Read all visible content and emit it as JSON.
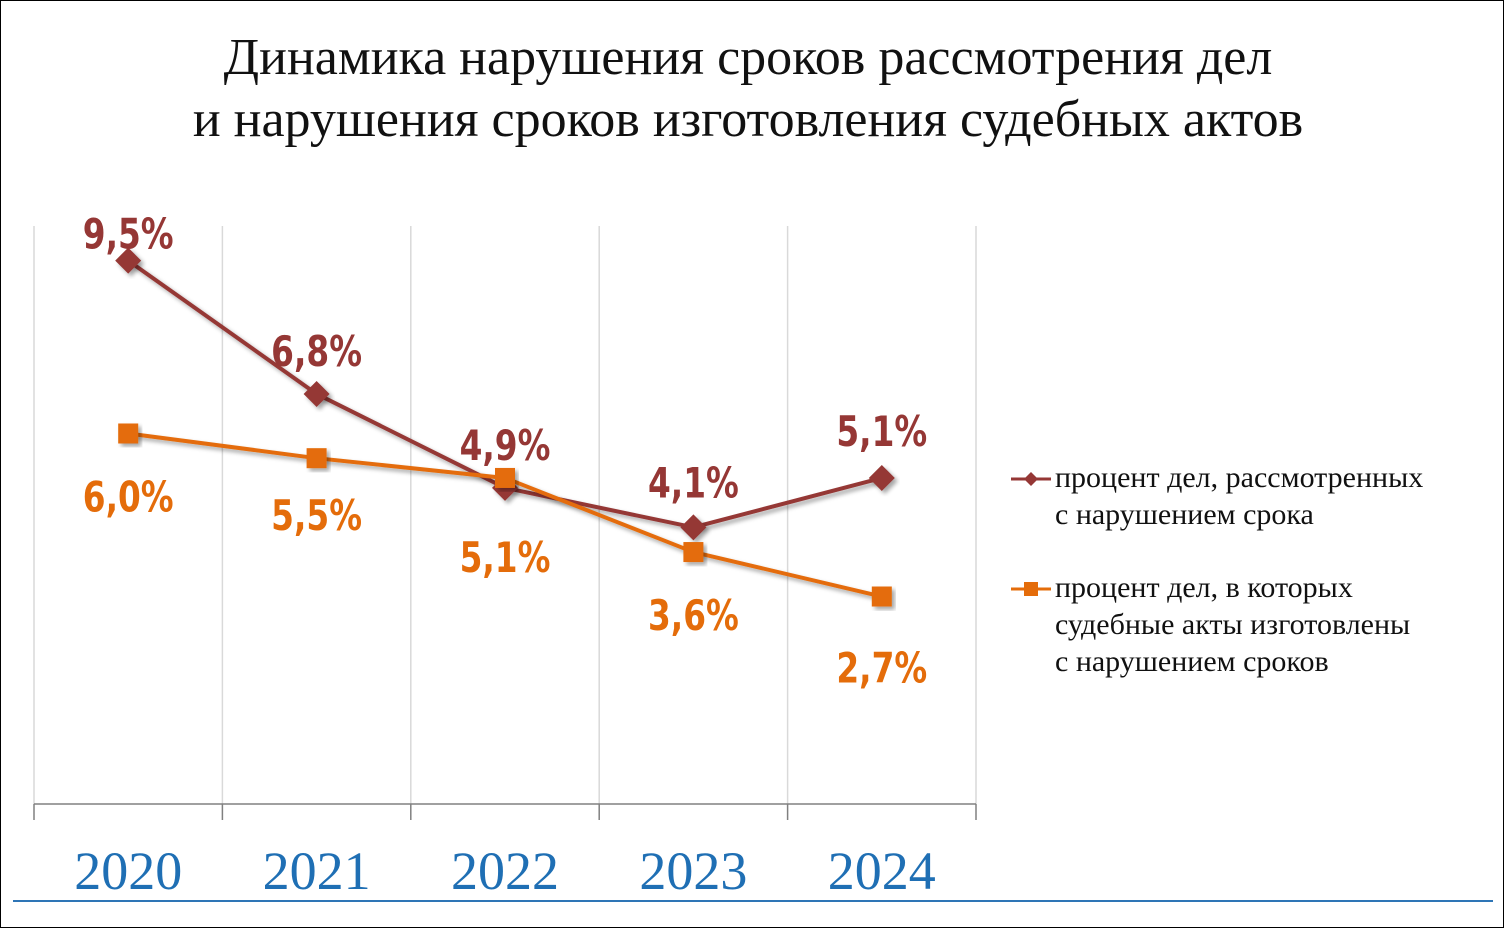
{
  "title": {
    "line1": "Динамика нарушения сроков рассмотрения дел",
    "line2": "и нарушения сроков изготовления судебных актов"
  },
  "legend": {
    "item1": "процент дел, рассмотренных с нарушением срока",
    "item2": "процент дел, в которых судебные акты изготовлены с нарушением сроков"
  },
  "colors": {
    "series1": "#953735",
    "series2": "#E46C0A",
    "axis_labels": "#1F6FB4",
    "gridlines": "#D9D9D9"
  },
  "chart_data": {
    "type": "line",
    "categories": [
      "2020",
      "2021",
      "2022",
      "2023",
      "2024"
    ],
    "series": [
      {
        "name": "процент дел, рассмотренных с нарушением срока",
        "marker": "diamond",
        "values": [
          9.5,
          6.8,
          4.9,
          4.1,
          5.1
        ],
        "labels": [
          "9,5%",
          "6,8%",
          "4,9%",
          "4,1%",
          "5,1%"
        ]
      },
      {
        "name": "процент дел, в которых судебные акты изготовлены с нарушением сроков",
        "marker": "square",
        "values": [
          6.0,
          5.5,
          5.1,
          3.6,
          2.7
        ],
        "labels": [
          "6,0%",
          "5,5%",
          "5,1%",
          "3,6%",
          "2,7%"
        ]
      }
    ],
    "ylim": [
      -1.5,
      10.2
    ],
    "grid": "vertical",
    "legend_position": "right"
  }
}
